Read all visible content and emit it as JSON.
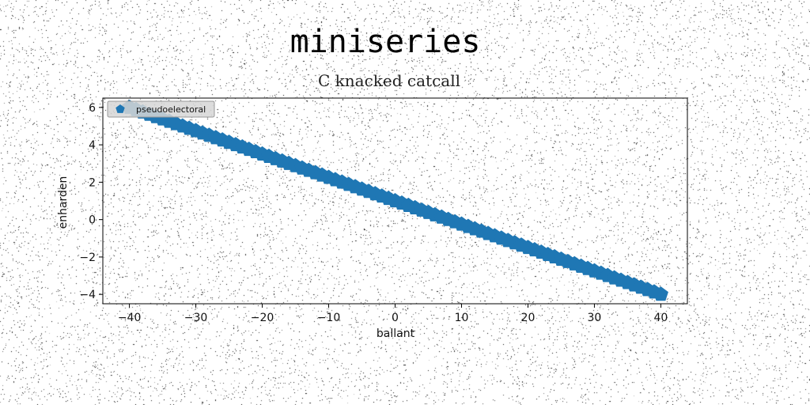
{
  "chart_data": {
    "type": "line",
    "title": "miniseries",
    "subtitle": "C knacked catcall",
    "xlabel": "ballant",
    "ylabel": "enharden",
    "xlim": [
      -44,
      44
    ],
    "ylim": [
      -4.5,
      6.5
    ],
    "xticks": [
      -40,
      -30,
      -20,
      -10,
      0,
      10,
      20,
      30,
      40
    ],
    "yticks": [
      -4,
      -2,
      0,
      2,
      4,
      6
    ],
    "xtick_labels": [
      "−40",
      "−30",
      "−20",
      "−10",
      "0",
      "10",
      "20",
      "30",
      "40"
    ],
    "ytick_labels": [
      "−4",
      "−2",
      "0",
      "2",
      "4",
      "6"
    ],
    "grid": false,
    "legend_position": "top-left",
    "series": [
      {
        "name": "pseudoelectoral",
        "marker": "pentagon",
        "color": "#1f77b4",
        "x": [
          -40,
          -39,
          -38,
          -37,
          -36,
          -35,
          -34,
          -33,
          -32,
          -31,
          -30,
          -29,
          -28,
          -27,
          -26,
          -25,
          -24,
          -23,
          -22,
          -21,
          -20,
          -19,
          -18,
          -17,
          -16,
          -15,
          -14,
          -13,
          -12,
          -11,
          -10,
          -9,
          -8,
          -7,
          -6,
          -5,
          -4,
          -3,
          -2,
          -1,
          0,
          1,
          2,
          3,
          4,
          5,
          6,
          7,
          8,
          9,
          10,
          11,
          12,
          13,
          14,
          15,
          16,
          17,
          18,
          19,
          20,
          21,
          22,
          23,
          24,
          25,
          26,
          27,
          28,
          29,
          30,
          31,
          32,
          33,
          34,
          35,
          36,
          37,
          38,
          39,
          40
        ],
        "y": [
          6.0,
          5.875,
          5.75,
          5.625,
          5.5,
          5.375,
          5.25,
          5.125,
          5.0,
          4.875,
          4.75,
          4.625,
          4.5,
          4.375,
          4.25,
          4.125,
          4.0,
          3.875,
          3.75,
          3.625,
          3.5,
          3.375,
          3.25,
          3.125,
          3.0,
          2.875,
          2.75,
          2.625,
          2.5,
          2.375,
          2.25,
          2.125,
          2.0,
          1.875,
          1.75,
          1.625,
          1.5,
          1.375,
          1.25,
          1.125,
          1.0,
          0.875,
          0.75,
          0.625,
          0.5,
          0.375,
          0.25,
          0.125,
          0.0,
          -0.125,
          -0.25,
          -0.375,
          -0.5,
          -0.625,
          -0.75,
          -0.875,
          -1.0,
          -1.125,
          -1.25,
          -1.375,
          -1.5,
          -1.625,
          -1.75,
          -1.875,
          -2.0,
          -2.125,
          -2.25,
          -2.375,
          -2.5,
          -2.625,
          -2.75,
          -2.875,
          -3.0,
          -3.125,
          -3.25,
          -3.375,
          -3.5,
          -3.625,
          -3.75,
          -3.875,
          -4.0
        ]
      }
    ]
  }
}
